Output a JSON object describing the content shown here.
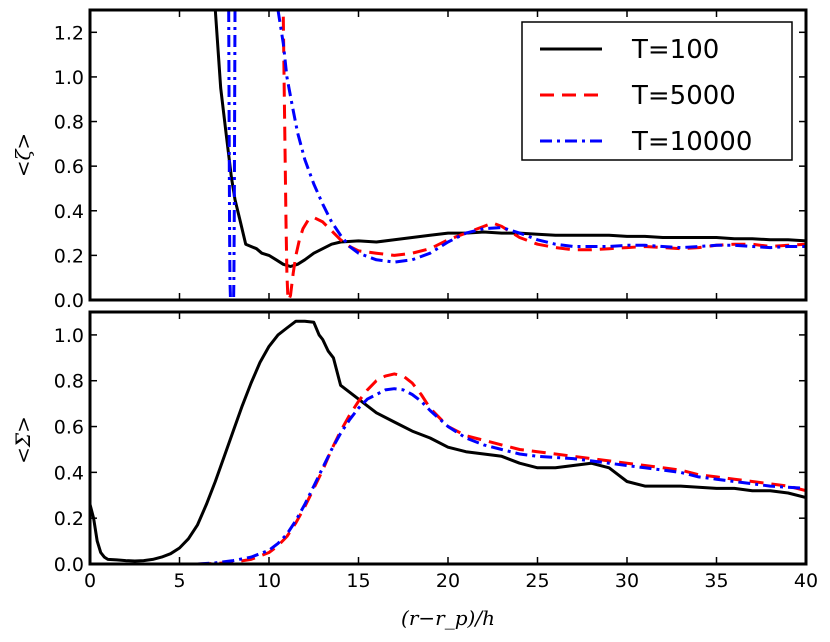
{
  "chart_data": [
    {
      "type": "line",
      "panel": "top",
      "ylabel": "<ζ>",
      "xlim": [
        0,
        40
      ],
      "ylim": [
        0,
        1.3
      ],
      "yticks": [
        "0.0",
        "0.2",
        "0.4",
        "0.6",
        "0.8",
        "1.0",
        "1.2"
      ],
      "legend": {
        "placement": "top-right",
        "entries": [
          "T=100",
          "T=5000",
          "T=10000"
        ]
      },
      "series": [
        {
          "name": "T=100",
          "color": "#000000",
          "style": "solid",
          "x": [
            7.0,
            7.3,
            7.6,
            7.9,
            8.1,
            8.4,
            8.7,
            9.0,
            9.3,
            9.6,
            10.0,
            10.4,
            10.8,
            11.2,
            11.6,
            12.0,
            12.5,
            13.0,
            13.5,
            14.0,
            15.0,
            16.0,
            17.0,
            18.0,
            19.0,
            20.0,
            21.0,
            22.0,
            23.0,
            24.0,
            25.0,
            26.0,
            27.0,
            28.0,
            29.0,
            30.0,
            31.0,
            32.0,
            33.0,
            34.0,
            35.0,
            36.0,
            37.0,
            38.0,
            39.0,
            40.0
          ],
          "y": [
            1.3,
            0.95,
            0.75,
            0.55,
            0.45,
            0.35,
            0.25,
            0.24,
            0.23,
            0.21,
            0.2,
            0.18,
            0.16,
            0.15,
            0.16,
            0.18,
            0.21,
            0.23,
            0.25,
            0.26,
            0.265,
            0.26,
            0.27,
            0.28,
            0.29,
            0.3,
            0.3,
            0.305,
            0.3,
            0.3,
            0.295,
            0.29,
            0.29,
            0.29,
            0.29,
            0.285,
            0.285,
            0.28,
            0.28,
            0.28,
            0.28,
            0.275,
            0.275,
            0.27,
            0.27,
            0.265
          ]
        },
        {
          "name": "T=5000",
          "color": "#ff0000",
          "style": "dashed",
          "x": [
            10.8,
            10.85,
            10.9,
            10.95,
            11.0,
            11.05,
            11.1,
            11.2,
            11.35,
            11.5,
            11.7,
            11.9,
            12.2,
            12.5,
            13.0,
            13.5,
            14.0,
            14.5,
            15.0,
            16.0,
            17.0,
            18.0,
            19.0,
            20.0,
            21.0,
            22.0,
            22.5,
            23.0,
            24.0,
            25.0,
            26.0,
            27.0,
            28.0,
            29.0,
            30.0,
            31.0,
            32.0,
            33.0,
            34.0,
            35.0,
            36.0,
            37.0,
            38.0,
            39.0,
            40.0
          ],
          "y": [
            1.27,
            0.95,
            0.65,
            0.35,
            0.12,
            0.02,
            0.0,
            0.02,
            0.12,
            0.2,
            0.27,
            0.32,
            0.36,
            0.37,
            0.35,
            0.31,
            0.27,
            0.24,
            0.22,
            0.21,
            0.2,
            0.21,
            0.23,
            0.27,
            0.3,
            0.33,
            0.345,
            0.33,
            0.28,
            0.25,
            0.235,
            0.225,
            0.225,
            0.23,
            0.235,
            0.24,
            0.235,
            0.23,
            0.235,
            0.245,
            0.25,
            0.25,
            0.24,
            0.245,
            0.25
          ]
        },
        {
          "name": "T=10000",
          "color": "#0000ff",
          "style": "dashdot",
          "x": [
            10.5,
            10.8,
            11.0,
            11.3,
            11.6,
            12.0,
            12.5,
            13.0,
            13.5,
            14.0,
            14.5,
            15.0,
            16.0,
            17.0,
            18.0,
            19.0,
            20.0,
            21.0,
            22.0,
            23.0,
            24.0,
            25.0,
            26.0,
            27.0,
            28.0,
            29.0,
            30.0,
            31.0,
            32.0,
            33.0,
            34.0,
            35.0,
            36.0,
            37.0,
            38.0,
            39.0,
            40.0
          ],
          "y": [
            1.3,
            1.15,
            1.0,
            0.87,
            0.75,
            0.63,
            0.52,
            0.43,
            0.35,
            0.29,
            0.24,
            0.21,
            0.18,
            0.17,
            0.18,
            0.21,
            0.26,
            0.3,
            0.32,
            0.325,
            0.3,
            0.27,
            0.25,
            0.24,
            0.24,
            0.24,
            0.245,
            0.245,
            0.24,
            0.235,
            0.24,
            0.245,
            0.245,
            0.24,
            0.235,
            0.24,
            0.24
          ]
        }
      ],
      "extra_segments": [
        {
          "series": "T=10000",
          "x": [
            7.75,
            7.78,
            7.8,
            7.82,
            7.85
          ],
          "y": [
            1.3,
            0.6,
            0.3,
            0.08,
            0.0
          ]
        },
        {
          "series": "T=10000",
          "x": [
            8.1,
            8.08,
            8.06,
            8.04,
            8.02
          ],
          "y": [
            1.3,
            0.8,
            0.4,
            0.1,
            0.0
          ]
        }
      ]
    },
    {
      "type": "line",
      "panel": "bottom",
      "ylabel": "<Σ>",
      "xlabel": "(r−r_p)/h",
      "xlim": [
        0,
        40
      ],
      "ylim": [
        0,
        1.1
      ],
      "xticks": [
        "0",
        "5",
        "10",
        "15",
        "20",
        "25",
        "30",
        "35",
        "40"
      ],
      "yticks": [
        "0.0",
        "0.2",
        "0.4",
        "0.6",
        "0.8",
        "1.0"
      ],
      "series": [
        {
          "name": "T=100",
          "color": "#000000",
          "style": "solid",
          "x": [
            0.0,
            0.2,
            0.4,
            0.6,
            0.8,
            1.0,
            1.5,
            2.0,
            2.5,
            3.0,
            3.5,
            4.0,
            4.5,
            5.0,
            5.5,
            6.0,
            6.5,
            7.0,
            7.5,
            8.0,
            8.5,
            9.0,
            9.5,
            10.0,
            10.5,
            11.0,
            11.5,
            12.0,
            12.5,
            12.8,
            13.0,
            13.3,
            13.6,
            14.0,
            15.0,
            16.0,
            17.0,
            18.0,
            19.0,
            20.0,
            21.0,
            22.0,
            23.0,
            24.0,
            25.0,
            26.0,
            27.0,
            28.0,
            29.0,
            29.5,
            30.0,
            31.0,
            32.0,
            33.0,
            34.0,
            35.0,
            36.0,
            37.0,
            38.0,
            39.0,
            40.0
          ],
          "y": [
            0.26,
            0.2,
            0.1,
            0.05,
            0.03,
            0.02,
            0.018,
            0.015,
            0.013,
            0.015,
            0.02,
            0.03,
            0.045,
            0.07,
            0.11,
            0.17,
            0.26,
            0.36,
            0.47,
            0.58,
            0.69,
            0.79,
            0.88,
            0.95,
            1.0,
            1.03,
            1.06,
            1.06,
            1.055,
            1.0,
            0.98,
            0.93,
            0.9,
            0.78,
            0.72,
            0.66,
            0.62,
            0.58,
            0.55,
            0.51,
            0.49,
            0.48,
            0.47,
            0.44,
            0.42,
            0.42,
            0.43,
            0.44,
            0.42,
            0.39,
            0.36,
            0.34,
            0.34,
            0.34,
            0.335,
            0.33,
            0.33,
            0.32,
            0.32,
            0.31,
            0.29
          ]
        },
        {
          "name": "T=5000",
          "color": "#ff0000",
          "style": "dashed",
          "x": [
            6.0,
            7.0,
            8.0,
            9.0,
            10.0,
            10.5,
            11.0,
            11.5,
            12.0,
            12.5,
            13.0,
            13.5,
            14.0,
            14.5,
            15.0,
            15.5,
            16.0,
            16.5,
            17.0,
            17.5,
            18.0,
            18.5,
            19.0,
            20.0,
            21.0,
            22.0,
            23.0,
            24.0,
            25.0,
            26.0,
            27.0,
            28.0,
            29.0,
            30.0,
            31.0,
            32.0,
            33.0,
            34.0,
            35.0,
            36.0,
            37.0,
            38.0,
            39.0,
            40.0
          ],
          "y": [
            0.0,
            0.002,
            0.008,
            0.02,
            0.05,
            0.08,
            0.12,
            0.18,
            0.25,
            0.33,
            0.41,
            0.5,
            0.58,
            0.65,
            0.71,
            0.76,
            0.8,
            0.82,
            0.83,
            0.82,
            0.79,
            0.74,
            0.68,
            0.6,
            0.56,
            0.54,
            0.52,
            0.5,
            0.49,
            0.48,
            0.47,
            0.46,
            0.45,
            0.44,
            0.43,
            0.42,
            0.41,
            0.39,
            0.38,
            0.37,
            0.36,
            0.35,
            0.34,
            0.32
          ]
        },
        {
          "name": "T=10000",
          "color": "#0000ff",
          "style": "dashdot",
          "x": [
            6.0,
            7.0,
            8.0,
            9.0,
            10.0,
            10.5,
            11.0,
            11.5,
            12.0,
            12.5,
            13.0,
            13.5,
            14.0,
            14.5,
            15.0,
            15.5,
            16.0,
            16.5,
            17.0,
            17.5,
            18.0,
            18.5,
            19.0,
            20.0,
            21.0,
            22.0,
            23.0,
            24.0,
            25.0,
            26.0,
            27.0,
            28.0,
            29.0,
            30.0,
            31.0,
            32.0,
            33.0,
            34.0,
            35.0,
            36.0,
            37.0,
            38.0,
            39.0,
            40.0
          ],
          "y": [
            0.0,
            0.005,
            0.015,
            0.03,
            0.06,
            0.09,
            0.13,
            0.19,
            0.26,
            0.34,
            0.42,
            0.5,
            0.57,
            0.63,
            0.68,
            0.72,
            0.74,
            0.76,
            0.765,
            0.76,
            0.74,
            0.71,
            0.67,
            0.6,
            0.55,
            0.52,
            0.5,
            0.48,
            0.47,
            0.465,
            0.46,
            0.45,
            0.44,
            0.43,
            0.42,
            0.41,
            0.4,
            0.38,
            0.37,
            0.36,
            0.35,
            0.34,
            0.335,
            0.33
          ]
        }
      ]
    }
  ]
}
